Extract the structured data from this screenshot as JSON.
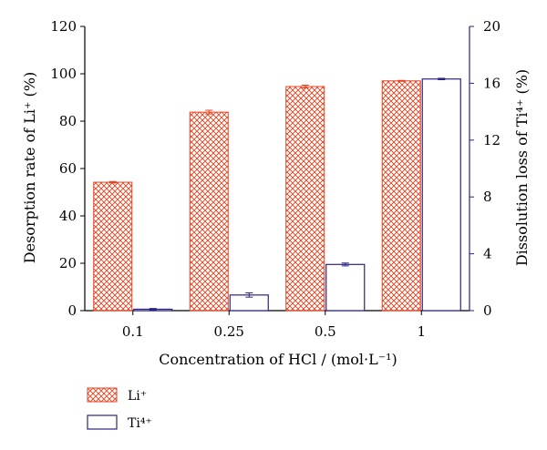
{
  "chart_data": {
    "type": "bar",
    "title": "",
    "xlabel": "Concentration of HCl / (mol·L⁻¹)",
    "ylabel_left": "Desorption rate of Li⁺ (%)",
    "ylabel_right": "Dissolution loss of Ti⁴⁺ (%)",
    "categories": [
      "0.1",
      "0.25",
      "0.5",
      "1"
    ],
    "ylim_left": [
      0,
      120
    ],
    "yticks_left": [
      0,
      20,
      40,
      60,
      80,
      100,
      120
    ],
    "ylim_right": [
      0,
      20
    ],
    "yticks_right": [
      0,
      4,
      8,
      12,
      16,
      20
    ],
    "grid": false,
    "legend_position": "bottom-left",
    "series": [
      {
        "name": "Li⁺",
        "axis": "left",
        "pattern": "crosshatch",
        "color": "#e8401c",
        "values": [
          54.2,
          83.8,
          94.6,
          97.0
        ],
        "errors": [
          0.3,
          0.8,
          0.6,
          0.2
        ]
      },
      {
        "name": "Ti⁴⁺",
        "axis": "right",
        "pattern": "open",
        "color": "#2a2480",
        "values": [
          0.1,
          1.1,
          3.25,
          16.3
        ],
        "errors": [
          0.05,
          0.15,
          0.1,
          0.05
        ]
      }
    ]
  }
}
